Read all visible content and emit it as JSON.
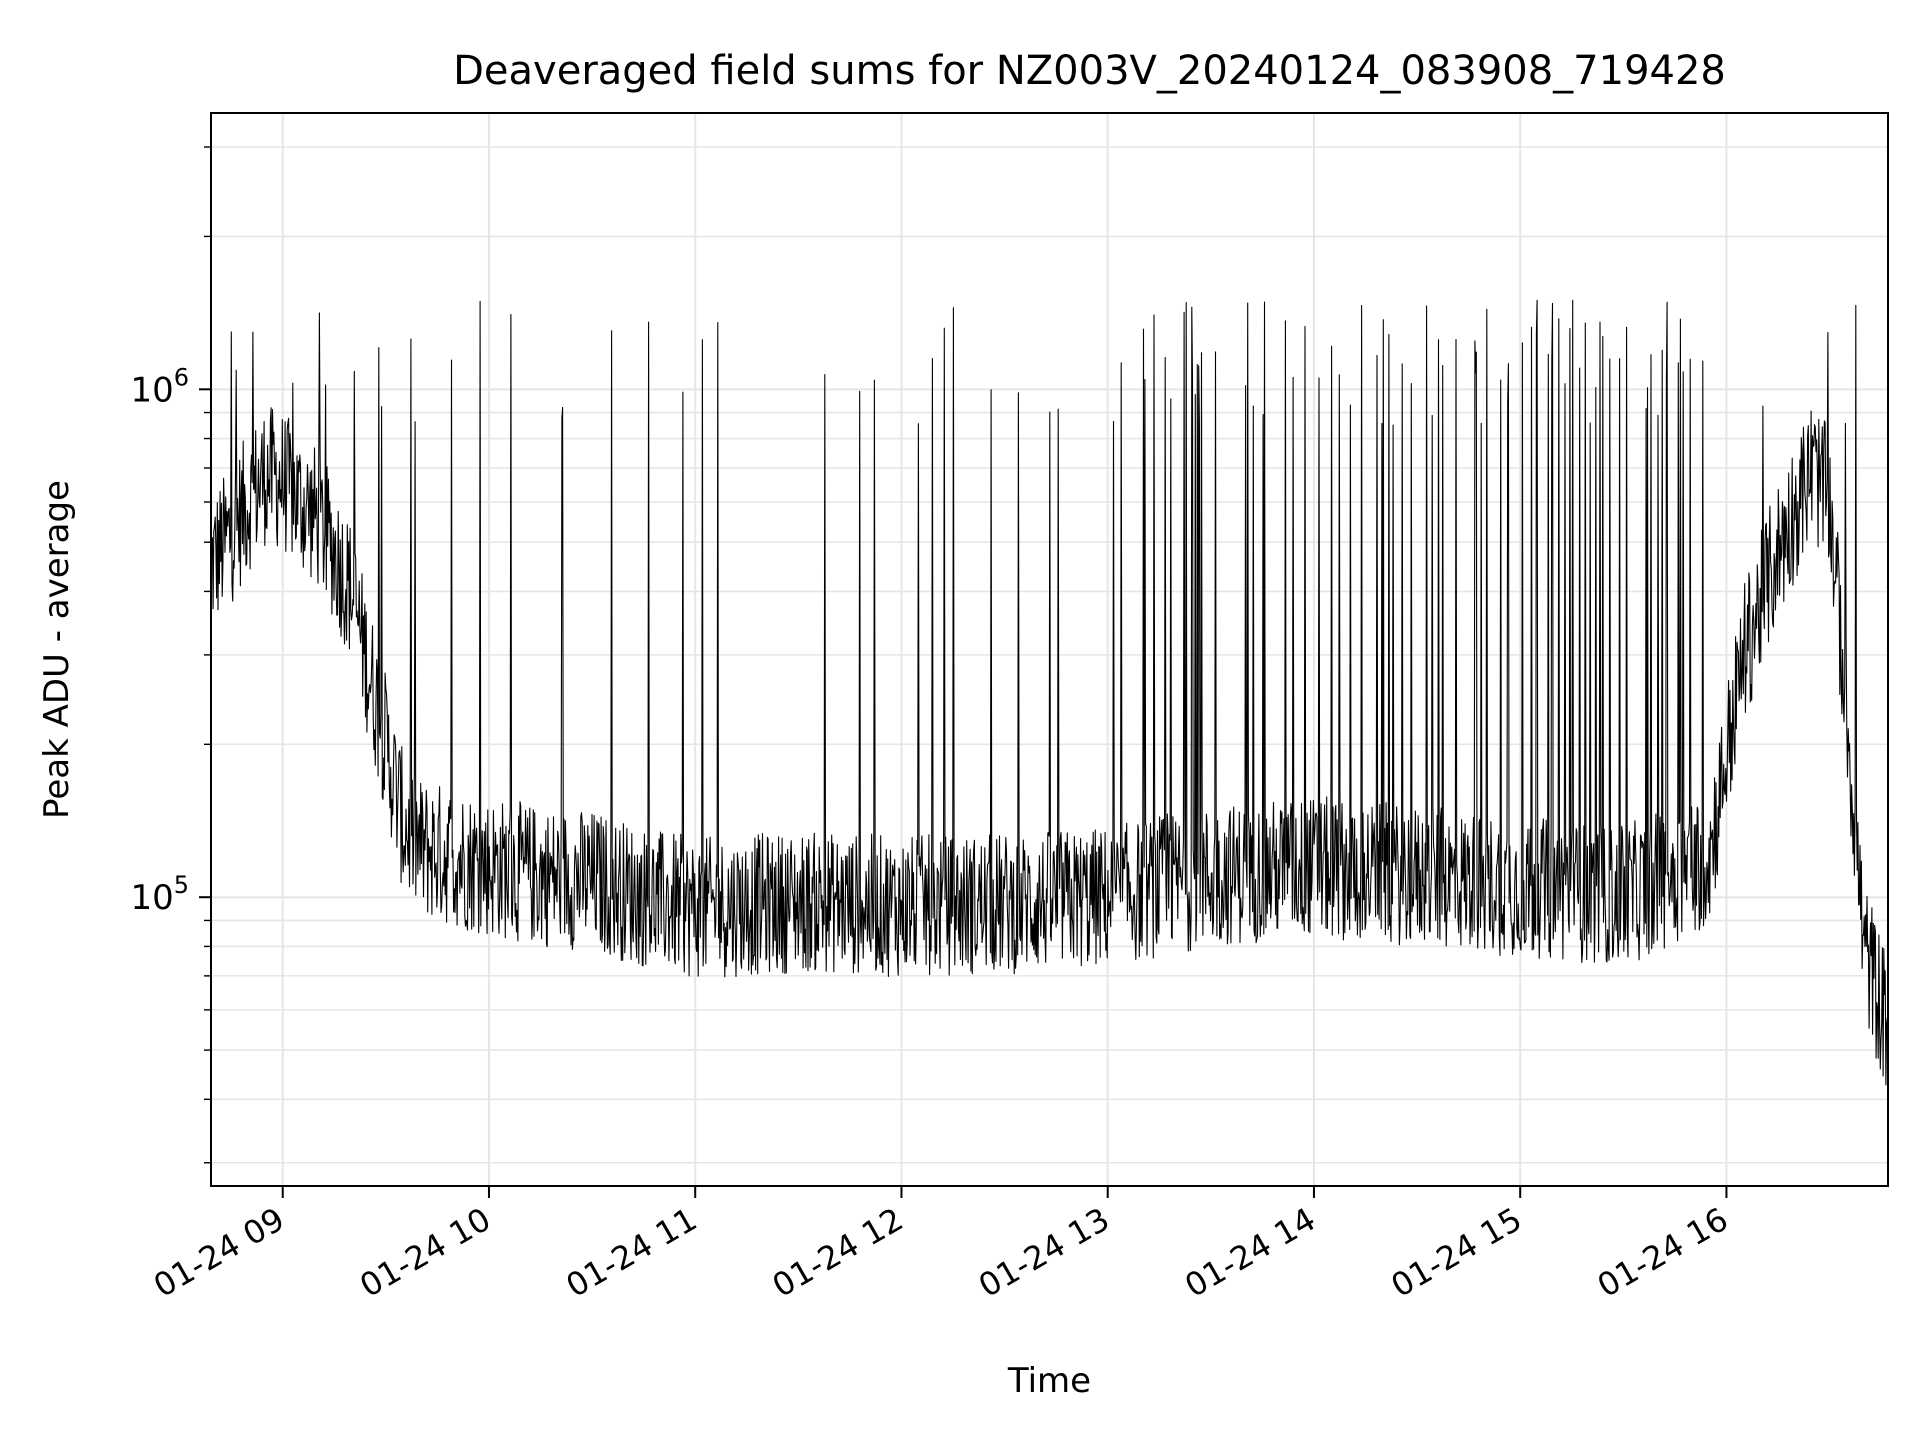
{
  "chart_data": {
    "type": "line",
    "title": "Deaveraged field sums for NZ003V_20240124_083908_719428",
    "xlabel": "Time",
    "ylabel": "Peak ADU - average",
    "x_axis": {
      "kind": "time",
      "range": [
        "2024-01-24T08:39:08",
        "2024-01-24T16:47:00"
      ],
      "ticks": [
        {
          "value": "2024-01-24T09:00",
          "label": "01-24 09"
        },
        {
          "value": "2024-01-24T10:00",
          "label": "01-24 10"
        },
        {
          "value": "2024-01-24T11:00",
          "label": "01-24 11"
        },
        {
          "value": "2024-01-24T12:00",
          "label": "01-24 12"
        },
        {
          "value": "2024-01-24T13:00",
          "label": "01-24 13"
        },
        {
          "value": "2024-01-24T14:00",
          "label": "01-24 14"
        },
        {
          "value": "2024-01-24T15:00",
          "label": "01-24 15"
        },
        {
          "value": "2024-01-24T16:00",
          "label": "01-24 16"
        }
      ]
    },
    "y_axis": {
      "scale": "log",
      "range": [
        27000,
        3500000
      ],
      "major_ticks": [
        {
          "value": 100000,
          "base": "10",
          "exp": "5"
        },
        {
          "value": 1000000,
          "base": "10",
          "exp": "6"
        }
      ]
    },
    "grid": true,
    "colors": {
      "line": "#000000",
      "grid": "#e6e6e6",
      "axes": "#000000"
    },
    "series": [
      {
        "color": "#000000",
        "x": [
          "2024-01-24T08:39:08",
          "2024-01-24T08:45",
          "2024-01-24T08:50",
          "2024-01-24T08:55",
          "2024-01-24T09:00",
          "2024-01-24T09:05",
          "2024-01-24T09:10",
          "2024-01-24T09:15",
          "2024-01-24T09:20",
          "2024-01-24T09:25",
          "2024-01-24T09:30",
          "2024-01-24T09:35",
          "2024-01-24T09:40",
          "2024-01-24T09:50",
          "2024-01-24T10:00",
          "2024-01-24T10:15",
          "2024-01-24T10:30",
          "2024-01-24T10:45",
          "2024-01-24T11:00",
          "2024-01-24T11:30",
          "2024-01-24T12:00",
          "2024-01-24T12:30",
          "2024-01-24T13:00",
          "2024-01-24T13:30",
          "2024-01-24T14:00",
          "2024-01-24T14:30",
          "2024-01-24T15:00",
          "2024-01-24T15:30",
          "2024-01-24T15:55",
          "2024-01-24T16:05",
          "2024-01-24T16:15",
          "2024-01-24T16:25",
          "2024-01-24T16:30",
          "2024-01-24T16:35",
          "2024-01-24T16:40",
          "2024-01-24T16:47"
        ],
        "y": [
          450000,
          520000,
          600000,
          680000,
          660000,
          600000,
          560000,
          480000,
          400000,
          280000,
          200000,
          140000,
          125000,
          120000,
          115000,
          110000,
          108000,
          100000,
          95000,
          98000,
          96000,
          97000,
          100000,
          110000,
          115000,
          110000,
          105000,
          100000,
          120000,
          300000,
          480000,
          700000,
          600000,
          230000,
          80000,
          55000
        ]
      }
    ]
  }
}
